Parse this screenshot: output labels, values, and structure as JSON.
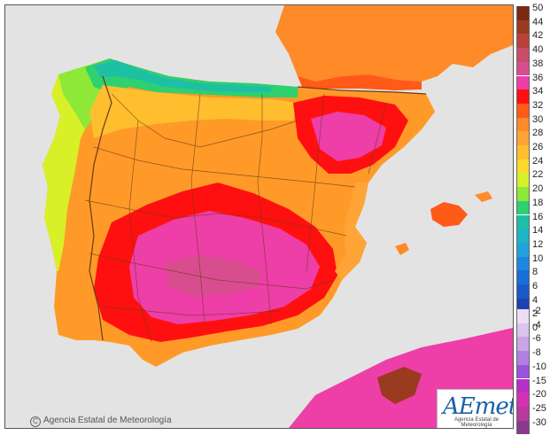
{
  "copyright_text": "Agencia Estatal de Meteorología",
  "logo": {
    "mark": "AEmet",
    "subtitle": "Agencia Estatal de Meteorología"
  },
  "colors": {
    "sea": "#e3e3e3",
    "land_default": "#ff9a28",
    "border_lines": "#6b3a1a"
  },
  "legend": {
    "upper_scale": [
      {
        "label": "50",
        "color": "#7a2a12"
      },
      {
        "label": "44",
        "color": "#9a3a1e"
      },
      {
        "label": "42",
        "color": "#b8423a"
      },
      {
        "label": "40",
        "color": "#c84d66"
      },
      {
        "label": "38",
        "color": "#d84d8e"
      },
      {
        "label": "36",
        "color": "#ee3ea8"
      },
      {
        "label": "34",
        "color": "#ff1010"
      },
      {
        "label": "32",
        "color": "#ff5a18"
      },
      {
        "label": "30",
        "color": "#ff8a28"
      },
      {
        "label": "28",
        "color": "#ffa436"
      },
      {
        "label": "26",
        "color": "#ffbe2e"
      },
      {
        "label": "24",
        "color": "#ffd82e"
      },
      {
        "label": "22",
        "color": "#d8f028"
      },
      {
        "label": "20",
        "color": "#8ee838"
      },
      {
        "label": "18",
        "color": "#2ed070"
      },
      {
        "label": "16",
        "color": "#1ec0a4"
      },
      {
        "label": "14",
        "color": "#1eb4c4"
      },
      {
        "label": "12",
        "color": "#22a2dc"
      },
      {
        "label": "10",
        "color": "#1e86e0"
      },
      {
        "label": "8",
        "color": "#1a6ed8"
      },
      {
        "label": "6",
        "color": "#1a58c8"
      },
      {
        "label": "4",
        "color": "#1a44b0"
      },
      {
        "label": "2",
        "color": "#143294"
      },
      {
        "label": "0",
        "color": "#0e2276"
      }
    ],
    "lower_scale": [
      {
        "label": "-2",
        "color": "#ecdcf4"
      },
      {
        "label": "-4",
        "color": "#dcc4ee"
      },
      {
        "label": "-6",
        "color": "#c8a6e6"
      },
      {
        "label": "-8",
        "color": "#b280e2"
      },
      {
        "label": "-10",
        "color": "#9a54dc"
      },
      {
        "label": "-15",
        "color": "#b82ec8"
      },
      {
        "label": "-20",
        "color": "#d430b4"
      },
      {
        "label": "-25",
        "color": "#b83a9e"
      },
      {
        "label": "-30",
        "color": "#8a3a8a"
      }
    ]
  }
}
